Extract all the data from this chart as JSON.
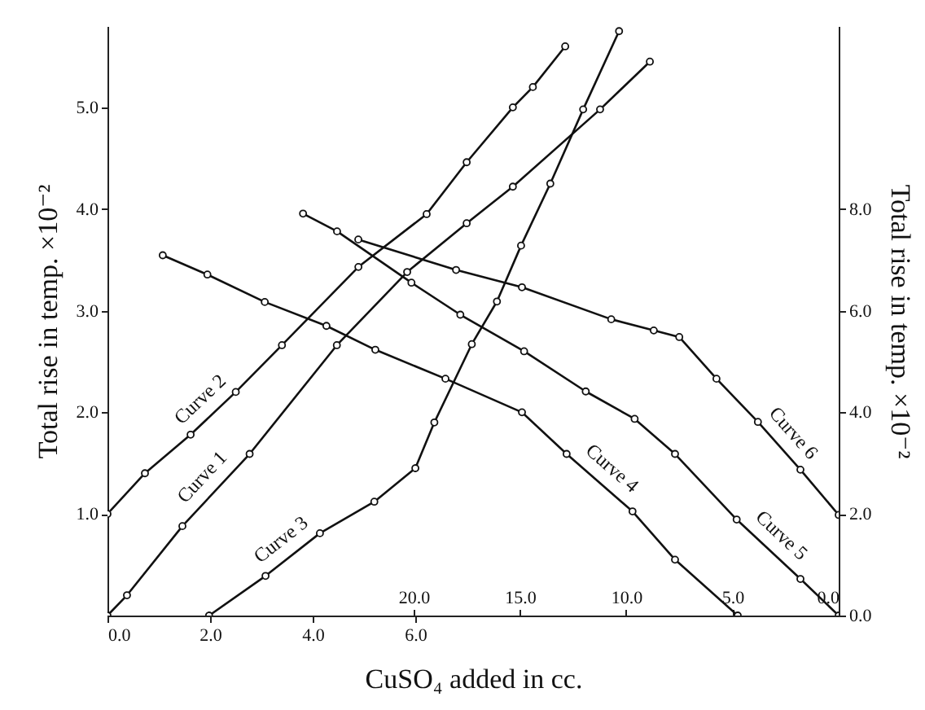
{
  "chart_data": [
    {
      "type": "line",
      "xlabel": "CuSO₄ added in cc.",
      "ylabel": "Total rise in temp.  ×10⁻²",
      "xlim": [
        0,
        14.25
      ],
      "xticks": [
        {
          "value": 0,
          "label": "0.0"
        },
        {
          "value": 2,
          "label": "2.0"
        },
        {
          "value": 4,
          "label": "4.0"
        },
        {
          "value": 6,
          "label": "6.0"
        }
      ],
      "ylim": [
        0,
        5.8
      ],
      "yticks": [
        {
          "value": 1,
          "label": "1.0"
        },
        {
          "value": 2,
          "label": "2.0"
        },
        {
          "value": 3,
          "label": "3.0"
        },
        {
          "value": 4,
          "label": "4.0"
        },
        {
          "value": 5,
          "label": "5.0"
        }
      ],
      "marker": "circle",
      "line_style": "solid",
      "series": [
        {
          "name": "Curve 1",
          "color": "#111111",
          "x": [
            0,
            0.38,
            1.46,
            2.77,
            4.47,
            5.84,
            7.0,
            7.9,
            9.6,
            10.57
          ],
          "values": [
            0,
            0.2,
            0.88,
            1.59,
            2.66,
            3.38,
            3.86,
            4.22,
            4.98,
            5.45
          ]
        },
        {
          "name": "Curve 2",
          "color": "#111111",
          "x": [
            0,
            0.73,
            1.62,
            2.5,
            3.4,
            4.89,
            6.22,
            7.0,
            7.9,
            8.29,
            8.92
          ],
          "values": [
            1.0,
            1.4,
            1.78,
            2.2,
            2.66,
            3.43,
            3.95,
            4.46,
            5.0,
            5.2,
            5.6
          ]
        },
        {
          "name": "Curve 3",
          "color": "#111111",
          "x": [
            1.98,
            3.08,
            4.14,
            5.2,
            6.0,
            6.37,
            7.1,
            7.59,
            8.06,
            8.63,
            9.27,
            9.97
          ],
          "values": [
            0,
            0.39,
            0.81,
            1.12,
            1.45,
            1.9,
            2.67,
            3.09,
            3.64,
            4.25,
            4.98,
            5.75
          ]
        }
      ]
    },
    {
      "type": "line",
      "ylabel": "Total rise in temp.  ×10⁻²",
      "xlim": [
        34.4,
        0
      ],
      "xticks": [
        {
          "value": 20,
          "label": "20.0"
        },
        {
          "value": 15,
          "label": "15.0"
        },
        {
          "value": 10,
          "label": "10.0"
        },
        {
          "value": 5,
          "label": "5.0"
        },
        {
          "value": 0,
          "label": "0.0"
        }
      ],
      "ylim": [
        0,
        11.6
      ],
      "yticks": [
        {
          "value": 0,
          "label": "0.0"
        },
        {
          "value": 2,
          "label": "2.0"
        },
        {
          "value": 4,
          "label": "4.0"
        },
        {
          "value": 6,
          "label": "6.0"
        },
        {
          "value": 8,
          "label": "8.0"
        }
      ],
      "marker": "circle",
      "line_style": "solid",
      "series": [
        {
          "name": "Curve 4",
          "color": "#111111",
          "x": [
            31.8,
            29.7,
            27.0,
            24.1,
            21.8,
            18.5,
            14.9,
            12.8,
            9.7,
            7.7,
            4.75
          ],
          "values": [
            7.09,
            6.71,
            6.17,
            5.7,
            5.23,
            4.66,
            4.0,
            3.18,
            2.05,
            1.1,
            0
          ]
        },
        {
          "name": "Curve 5",
          "color": "#111111",
          "x": [
            25.2,
            23.6,
            20.1,
            17.8,
            14.8,
            11.9,
            9.6,
            7.7,
            4.8,
            1.8,
            0
          ],
          "values": [
            7.91,
            7.56,
            6.55,
            5.92,
            5.2,
            4.41,
            3.87,
            3.18,
            1.89,
            0.72,
            0
          ]
        },
        {
          "name": "Curve 6",
          "color": "#111111",
          "x": [
            22.6,
            18.0,
            14.9,
            10.7,
            8.7,
            7.5,
            5.75,
            3.8,
            1.8,
            0
          ],
          "values": [
            7.4,
            6.8,
            6.46,
            5.83,
            5.61,
            5.48,
            4.66,
            3.81,
            2.87,
            1.98
          ]
        }
      ]
    }
  ]
}
